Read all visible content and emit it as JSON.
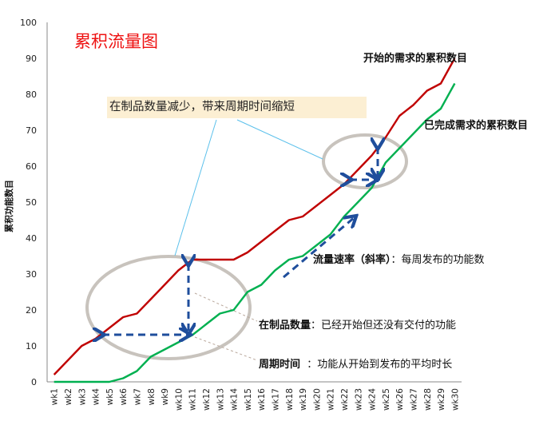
{
  "chart_data": {
    "type": "line",
    "title": "累积流量图",
    "xlabel": "",
    "ylabel": "累积功能数目",
    "ylim": [
      0,
      100
    ],
    "yticks": [
      0,
      10,
      20,
      30,
      40,
      50,
      60,
      70,
      80,
      90,
      100
    ],
    "grid": false,
    "categories": [
      "wk1",
      "wk2",
      "wk3",
      "wk4",
      "wk5",
      "wk6",
      "wk7",
      "wk8",
      "wk9",
      "wk10",
      "wk11",
      "wk12",
      "wk13",
      "wk14",
      "wk15",
      "wk16",
      "wk17",
      "wk18",
      "wk19",
      "wk20",
      "wk21",
      "wk22",
      "wk23",
      "wk24",
      "wk25",
      "wk26",
      "wk27",
      "wk28",
      "wk29",
      "wk30"
    ],
    "series": [
      {
        "name": "开始的需求的累积数目",
        "color": "#c00000",
        "values": [
          2,
          6,
          10,
          12,
          15,
          18,
          19,
          23,
          27,
          31,
          34,
          34,
          34,
          34,
          36,
          39,
          42,
          45,
          46,
          49,
          52,
          55,
          59,
          63,
          68,
          74,
          77,
          81,
          83,
          90
        ]
      },
      {
        "name": "已完成需求的累积数目",
        "color": "#00b050",
        "values": [
          0,
          0,
          0,
          0,
          0,
          1,
          3,
          7,
          9,
          11,
          13,
          16,
          19,
          20,
          25,
          27,
          31,
          34,
          35,
          38,
          41,
          46,
          50,
          54,
          61,
          65,
          69,
          73,
          76,
          83
        ]
      }
    ],
    "annotations": [
      {
        "text": "在制品数量减少，带来周期时间缩短"
      },
      {
        "bold": "流量速率（斜率）",
        "text": "：每周发布的功能数"
      },
      {
        "bold": "在制品数量",
        "text": "：已经开始但还没有交付的功能"
      },
      {
        "bold": "周期时间",
        "text": "  ：功能从开始到发布的平均时长"
      }
    ]
  },
  "labels": {
    "title": "累积流量图",
    "ylabel": "累积功能数目",
    "callout": "在制品数量减少，带来周期时间缩短",
    "series_started": "开始的需求的累积数目",
    "series_done": "已完成需求的累积数目",
    "flow_rate_bold": "流量速率（斜率）",
    "flow_rate_text": "：每周发布的功能数",
    "wip_bold": "在制品数量",
    "wip_text": "：已经开始但还没有交付的功能",
    "cycle_bold": "周期时间",
    "cycle_text": "  ：功能从开始到发布的平均时长"
  }
}
